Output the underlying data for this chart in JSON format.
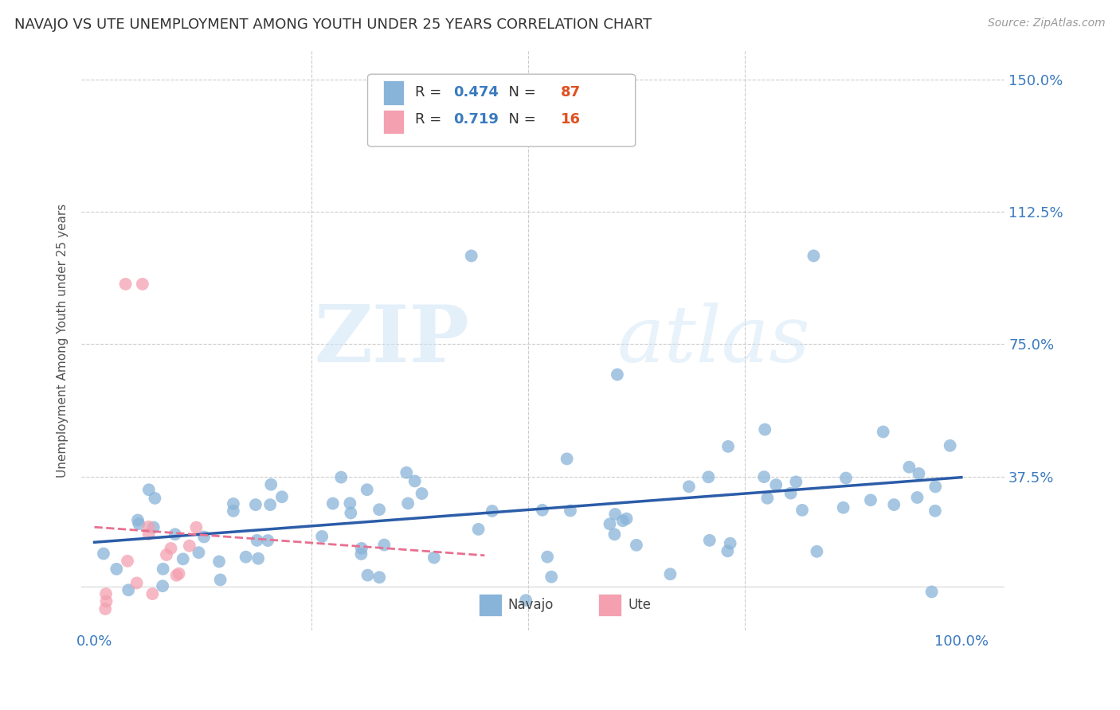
{
  "title": "NAVAJO VS UTE UNEMPLOYMENT AMONG YOUTH UNDER 25 YEARS CORRELATION CHART",
  "source": "Source: ZipAtlas.com",
  "ylabel": "Unemployment Among Youth under 25 years",
  "navajo_R": 0.474,
  "navajo_N": 87,
  "ute_R": 0.719,
  "ute_N": 16,
  "navajo_color": "#89b4d9",
  "ute_color": "#f4a0b0",
  "navajo_line_color": "#2b5ca8",
  "ute_line_color": "#e87090",
  "background_color": "#ffffff",
  "grid_color": "#cccccc",
  "watermark_zip": "ZIP",
  "watermark_atlas": "atlas",
  "legend_label_navajo": "Navajo",
  "legend_label_ute": "Ute",
  "xtick_labels": [
    "0.0%",
    "",
    "",
    "",
    "100.0%"
  ],
  "ytick_labels_right": [
    "",
    "37.5%",
    "75.0%",
    "112.5%",
    "150.0%"
  ],
  "title_fontsize": 13,
  "source_fontsize": 10,
  "tick_fontsize": 13,
  "ylabel_fontsize": 11
}
